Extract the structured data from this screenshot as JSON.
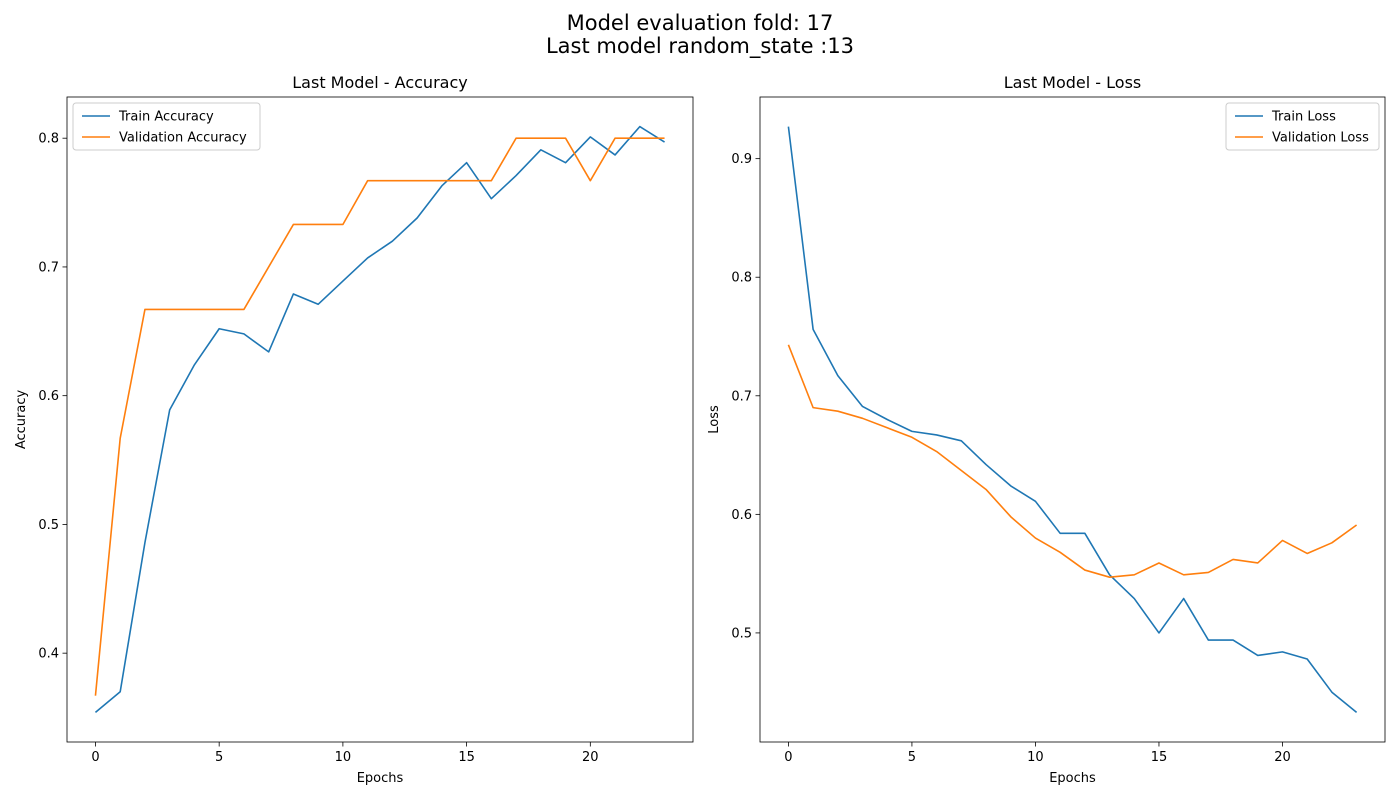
{
  "figure": {
    "suptitle_line1": "Model evaluation fold: 17",
    "suptitle_line2": "Last model random_state :13"
  },
  "chart_data": [
    {
      "type": "line",
      "title": "Last Model - Accuracy",
      "xlabel": "Epochs",
      "ylabel": "Accuracy",
      "xlim": [
        -1.15,
        24.15
      ],
      "ylim": [
        0.331,
        0.832
      ],
      "xticks": [
        0,
        5,
        10,
        15,
        20
      ],
      "yticks": [
        0.4,
        0.5,
        0.6,
        0.7,
        0.8
      ],
      "ytick_labels": [
        "0.4",
        "0.5",
        "0.6",
        "0.7",
        "0.8"
      ],
      "grid": false,
      "legend_position": "upper-left",
      "x": [
        0,
        1,
        2,
        3,
        4,
        5,
        6,
        7,
        8,
        9,
        10,
        11,
        12,
        13,
        14,
        15,
        16,
        17,
        18,
        19,
        20,
        21,
        22,
        23
      ],
      "series": [
        {
          "name": "Train Accuracy",
          "color": "#1f77b4",
          "values": [
            0.354,
            0.37,
            0.486,
            0.589,
            0.624,
            0.652,
            0.648,
            0.634,
            0.679,
            0.671,
            0.689,
            0.707,
            0.72,
            0.738,
            0.763,
            0.781,
            0.753,
            0.771,
            0.791,
            0.781,
            0.801,
            0.787,
            0.809,
            0.797
          ]
        },
        {
          "name": "Validation Accuracy",
          "color": "#ff7f0e",
          "values": [
            0.367,
            0.567,
            0.667,
            0.667,
            0.667,
            0.667,
            0.667,
            0.7,
            0.733,
            0.733,
            0.733,
            0.767,
            0.767,
            0.767,
            0.767,
            0.767,
            0.767,
            0.8,
            0.8,
            0.8,
            0.767,
            0.8,
            0.8,
            0.8
          ]
        }
      ]
    },
    {
      "type": "line",
      "title": "Last Model - Loss",
      "xlabel": "Epochs",
      "ylabel": "Loss",
      "xlim": [
        -1.15,
        24.15
      ],
      "ylim": [
        0.408,
        0.952
      ],
      "xticks": [
        0,
        5,
        10,
        15,
        20
      ],
      "yticks": [
        0.5,
        0.6,
        0.7,
        0.8,
        0.9
      ],
      "ytick_labels": [
        "0.5",
        "0.6",
        "0.7",
        "0.8",
        "0.9"
      ],
      "grid": false,
      "legend_position": "upper-right",
      "x": [
        0,
        1,
        2,
        3,
        4,
        5,
        6,
        7,
        8,
        9,
        10,
        11,
        12,
        13,
        14,
        15,
        16,
        17,
        18,
        19,
        20,
        21,
        22,
        23
      ],
      "series": [
        {
          "name": "Train Loss",
          "color": "#1f77b4",
          "values": [
            0.927,
            0.756,
            0.717,
            0.691,
            0.68,
            0.67,
            0.667,
            0.662,
            0.642,
            0.624,
            0.611,
            0.584,
            0.584,
            0.549,
            0.529,
            0.5,
            0.529,
            0.494,
            0.494,
            0.481,
            0.484,
            0.478,
            0.45,
            0.433
          ]
        },
        {
          "name": "Validation Loss",
          "color": "#ff7f0e",
          "values": [
            0.743,
            0.69,
            0.687,
            0.681,
            0.673,
            0.665,
            0.653,
            0.637,
            0.621,
            0.598,
            0.58,
            0.568,
            0.553,
            0.547,
            0.549,
            0.559,
            0.549,
            0.551,
            0.562,
            0.559,
            0.578,
            0.567,
            0.576,
            0.591
          ]
        }
      ]
    }
  ]
}
